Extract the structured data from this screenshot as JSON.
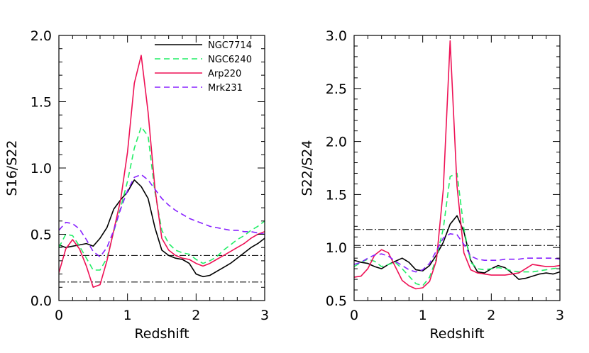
{
  "chart_data": [
    {
      "type": "line",
      "xlabel": "Redshift",
      "ylabel": "S16/S22",
      "xlim": [
        0,
        3
      ],
      "ylim": [
        0,
        2.0
      ],
      "xticks": [
        "0",
        "1",
        "2",
        "3"
      ],
      "yticks": [
        "0.0",
        "0.5",
        "1.0",
        "1.5",
        "2.0"
      ],
      "xtick_values": [
        0,
        1,
        2,
        3
      ],
      "ytick_values": [
        0,
        0.5,
        1.0,
        1.5,
        2.0
      ],
      "legend": "top-right",
      "hlines": [
        0.34,
        0.14
      ],
      "series": [
        {
          "name": "NGC7714",
          "color": "#000000",
          "dash": "solid",
          "x": [
            0,
            0.1,
            0.2,
            0.3,
            0.4,
            0.5,
            0.6,
            0.7,
            0.8,
            0.9,
            1.0,
            1.1,
            1.2,
            1.3,
            1.4,
            1.5,
            1.6,
            1.7,
            1.8,
            1.9,
            2.0,
            2.1,
            2.2,
            2.3,
            2.4,
            2.5,
            2.6,
            2.7,
            2.8,
            2.9,
            3.0
          ],
          "y": [
            0.42,
            0.4,
            0.41,
            0.42,
            0.43,
            0.41,
            0.47,
            0.55,
            0.69,
            0.76,
            0.82,
            0.91,
            0.86,
            0.77,
            0.55,
            0.38,
            0.34,
            0.32,
            0.31,
            0.28,
            0.2,
            0.18,
            0.19,
            0.22,
            0.25,
            0.28,
            0.32,
            0.36,
            0.4,
            0.43,
            0.47
          ]
        },
        {
          "name": "NGC6240",
          "color": "#22ee66",
          "dash": "dashed",
          "x": [
            0,
            0.1,
            0.2,
            0.3,
            0.4,
            0.5,
            0.6,
            0.7,
            0.8,
            0.9,
            1.0,
            1.1,
            1.2,
            1.3,
            1.4,
            1.5,
            1.6,
            1.7,
            1.8,
            1.9,
            2.0,
            2.1,
            2.2,
            2.3,
            2.4,
            2.5,
            2.6,
            2.7,
            2.8,
            2.9,
            3.0
          ],
          "y": [
            0.4,
            0.5,
            0.49,
            0.41,
            0.32,
            0.23,
            0.23,
            0.32,
            0.52,
            0.7,
            0.9,
            1.15,
            1.31,
            1.24,
            0.82,
            0.53,
            0.43,
            0.38,
            0.36,
            0.35,
            0.31,
            0.28,
            0.3,
            0.33,
            0.38,
            0.42,
            0.46,
            0.49,
            0.53,
            0.56,
            0.6
          ]
        },
        {
          "name": "Arp220",
          "color": "#ee1155",
          "dash": "solid",
          "x": [
            0,
            0.1,
            0.2,
            0.3,
            0.4,
            0.5,
            0.6,
            0.7,
            0.8,
            0.9,
            1.0,
            1.1,
            1.2,
            1.3,
            1.4,
            1.5,
            1.6,
            1.7,
            1.8,
            1.9,
            2.0,
            2.1,
            2.2,
            2.3,
            2.4,
            2.5,
            2.6,
            2.7,
            2.8,
            2.9,
            3.0
          ],
          "y": [
            0.21,
            0.39,
            0.46,
            0.39,
            0.26,
            0.1,
            0.12,
            0.3,
            0.53,
            0.76,
            1.12,
            1.64,
            1.85,
            1.42,
            0.85,
            0.47,
            0.38,
            0.34,
            0.32,
            0.31,
            0.28,
            0.26,
            0.28,
            0.31,
            0.34,
            0.37,
            0.4,
            0.43,
            0.47,
            0.5,
            0.52
          ]
        },
        {
          "name": "Mrk231",
          "color": "#8822ff",
          "dash": "dashed",
          "x": [
            0,
            0.1,
            0.2,
            0.3,
            0.4,
            0.5,
            0.6,
            0.7,
            0.8,
            0.9,
            1.0,
            1.1,
            1.2,
            1.3,
            1.4,
            1.5,
            1.6,
            1.7,
            1.8,
            1.9,
            2.0,
            2.1,
            2.2,
            2.3,
            2.4,
            2.5,
            2.6,
            2.7,
            2.8,
            2.9,
            3.0
          ],
          "y": [
            0.53,
            0.59,
            0.58,
            0.54,
            0.46,
            0.37,
            0.33,
            0.4,
            0.53,
            0.69,
            0.83,
            0.93,
            0.95,
            0.91,
            0.84,
            0.77,
            0.72,
            0.68,
            0.65,
            0.62,
            0.6,
            0.58,
            0.56,
            0.55,
            0.54,
            0.53,
            0.53,
            0.52,
            0.52,
            0.51,
            0.5
          ]
        }
      ]
    },
    {
      "type": "line",
      "xlabel": "Redshift",
      "ylabel": "S22/S24",
      "xlim": [
        0,
        3
      ],
      "ylim": [
        0.5,
        3.0
      ],
      "xticks": [
        "0",
        "1",
        "2",
        "3"
      ],
      "yticks": [
        "0.5",
        "1.0",
        "1.5",
        "2.0",
        "2.5",
        "3.0"
      ],
      "xtick_values": [
        0,
        1,
        2,
        3
      ],
      "ytick_values": [
        0.5,
        1.0,
        1.5,
        2.0,
        2.5,
        3.0
      ],
      "hlines": [
        1.17,
        1.02
      ],
      "series": [
        {
          "name": "NGC7714",
          "color": "#000000",
          "dash": "solid",
          "x": [
            0,
            0.1,
            0.2,
            0.3,
            0.4,
            0.5,
            0.6,
            0.7,
            0.8,
            0.9,
            1.0,
            1.1,
            1.2,
            1.3,
            1.4,
            1.5,
            1.6,
            1.7,
            1.8,
            1.9,
            2.0,
            2.1,
            2.2,
            2.3,
            2.4,
            2.5,
            2.6,
            2.7,
            2.8,
            2.9,
            3.0
          ],
          "y": [
            0.88,
            0.86,
            0.85,
            0.82,
            0.8,
            0.84,
            0.87,
            0.9,
            0.86,
            0.79,
            0.78,
            0.83,
            0.93,
            1.05,
            1.22,
            1.3,
            1.15,
            0.88,
            0.77,
            0.76,
            0.8,
            0.83,
            0.81,
            0.76,
            0.7,
            0.71,
            0.73,
            0.75,
            0.76,
            0.75,
            0.77
          ]
        },
        {
          "name": "NGC6240",
          "color": "#22ee66",
          "dash": "dashed",
          "x": [
            0,
            0.1,
            0.2,
            0.3,
            0.4,
            0.5,
            0.6,
            0.7,
            0.8,
            0.9,
            1.0,
            1.1,
            1.2,
            1.3,
            1.4,
            1.5,
            1.6,
            1.7,
            1.8,
            1.9,
            2.0,
            2.1,
            2.2,
            2.3,
            2.4,
            2.5,
            2.6,
            2.7,
            2.8,
            2.9,
            3.0
          ],
          "y": [
            0.82,
            0.86,
            0.89,
            0.87,
            0.82,
            0.84,
            0.86,
            0.8,
            0.73,
            0.66,
            0.64,
            0.72,
            0.9,
            1.18,
            1.67,
            1.7,
            1.18,
            0.86,
            0.8,
            0.79,
            0.8,
            0.81,
            0.8,
            0.78,
            0.77,
            0.77,
            0.77,
            0.78,
            0.79,
            0.8,
            0.81
          ]
        },
        {
          "name": "Arp220",
          "color": "#ee1155",
          "dash": "solid",
          "x": [
            0,
            0.1,
            0.2,
            0.3,
            0.4,
            0.5,
            0.6,
            0.7,
            0.8,
            0.9,
            1.0,
            1.1,
            1.2,
            1.3,
            1.4,
            1.5,
            1.6,
            1.7,
            1.8,
            1.9,
            2.0,
            2.1,
            2.2,
            2.3,
            2.4,
            2.5,
            2.6,
            2.7,
            2.8,
            2.9,
            3.0
          ],
          "y": [
            0.72,
            0.73,
            0.8,
            0.93,
            0.98,
            0.95,
            0.82,
            0.69,
            0.64,
            0.61,
            0.62,
            0.68,
            0.88,
            1.55,
            2.95,
            1.58,
            0.95,
            0.79,
            0.76,
            0.75,
            0.74,
            0.74,
            0.74,
            0.75,
            0.76,
            0.8,
            0.84,
            0.83,
            0.82,
            0.82,
            0.83
          ]
        },
        {
          "name": "Mrk231",
          "color": "#8822ff",
          "dash": "dashed",
          "x": [
            0,
            0.1,
            0.2,
            0.3,
            0.4,
            0.5,
            0.6,
            0.7,
            0.8,
            0.9,
            1.0,
            1.1,
            1.2,
            1.3,
            1.4,
            1.5,
            1.6,
            1.7,
            1.8,
            1.9,
            2.0,
            2.1,
            2.2,
            2.3,
            2.4,
            2.5,
            2.6,
            2.7,
            2.8,
            2.9,
            3.0
          ],
          "y": [
            0.84,
            0.86,
            0.9,
            0.93,
            0.94,
            0.92,
            0.87,
            0.83,
            0.79,
            0.77,
            0.79,
            0.85,
            0.97,
            1.09,
            1.13,
            1.12,
            1.03,
            0.92,
            0.89,
            0.88,
            0.88,
            0.88,
            0.89,
            0.89,
            0.89,
            0.9,
            0.9,
            0.9,
            0.9,
            0.9,
            0.89
          ]
        }
      ]
    }
  ]
}
